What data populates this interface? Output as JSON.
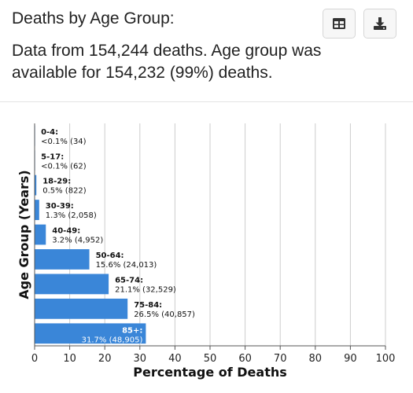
{
  "header": {
    "title": "Deaths by Age Group:",
    "description": "Data from 154,244 deaths. Age group was available for 154,232 (99%) deaths.",
    "table_icon": "table-icon",
    "download_icon": "download-icon"
  },
  "colors": {
    "bar": "#3a86d8",
    "grid": "#cccccc",
    "inside_label": "#ffffff"
  },
  "chart_data": {
    "type": "bar",
    "orientation": "horizontal",
    "xlabel": "Percentage of Deaths",
    "ylabel": "Age Group (Years)",
    "xlim": [
      0,
      100
    ],
    "xticks": [
      0,
      10,
      20,
      30,
      40,
      50,
      60,
      70,
      80,
      90,
      100
    ],
    "grid": true,
    "categories": [
      "0-4:",
      "5-17:",
      "18-29:",
      "30-39:",
      "40-49:",
      "50-64:",
      "65-74:",
      "75-84:",
      "85+:"
    ],
    "values": [
      0.02,
      0.04,
      0.5,
      1.3,
      3.2,
      15.6,
      21.1,
      26.5,
      31.7
    ],
    "value_labels": [
      "<0.1% (34)",
      "<0.1% (62)",
      "0.5% (822)",
      "1.3% (2,058)",
      "3.2% (4,952)",
      "15.6% (24,013)",
      "21.1% (32,529)",
      "26.5% (40,857)",
      "31.7% (48,905)"
    ]
  }
}
